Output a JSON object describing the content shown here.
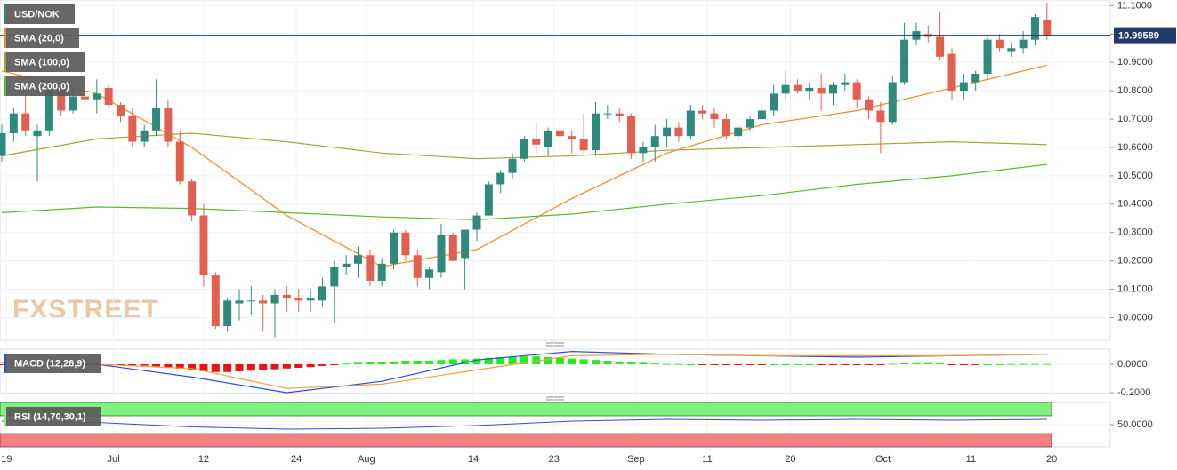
{
  "chart_data": [
    {
      "type": "candlestick",
      "title": "USD/NOK",
      "watermark": "FXSTREET",
      "up_color": "#2f8a7c",
      "down_color": "#e1604f",
      "open": [
        10.57,
        10.65,
        10.72,
        10.64,
        10.66,
        10.81,
        10.73,
        10.78,
        10.77,
        10.81,
        10.75,
        10.71,
        10.62,
        10.66,
        10.74,
        10.62,
        10.48,
        10.36,
        10.15,
        9.97,
        10.05,
        10.06,
        10.06,
        10.05,
        10.08,
        10.07,
        10.06,
        10.06,
        10.11,
        10.18,
        10.19,
        10.22,
        10.13,
        10.19,
        10.3,
        10.22,
        10.14,
        10.16,
        10.29,
        10.21,
        10.31,
        10.36,
        10.47,
        10.51,
        10.56,
        10.63,
        10.6,
        10.66,
        10.64,
        10.63,
        10.59,
        10.72,
        10.72,
        10.71,
        10.58,
        10.6,
        10.64,
        10.67,
        10.64,
        10.73,
        10.72,
        10.7,
        10.64,
        10.67,
        10.7,
        10.73,
        10.79,
        10.82,
        10.8,
        10.81,
        10.79,
        10.82,
        10.83,
        10.77,
        10.73,
        10.69,
        10.83,
        10.98,
        11.0,
        10.99,
        10.93,
        10.8,
        10.83,
        10.86,
        10.98,
        10.94,
        10.95,
        10.98,
        11.05
      ],
      "high": [
        10.68,
        10.74,
        10.8,
        10.68,
        10.84,
        10.83,
        10.82,
        10.8,
        10.84,
        10.82,
        10.76,
        10.74,
        10.68,
        10.84,
        10.77,
        10.66,
        10.49,
        10.4,
        10.16,
        10.07,
        10.1,
        10.11,
        10.08,
        10.1,
        10.11,
        10.1,
        10.1,
        10.14,
        10.2,
        10.22,
        10.25,
        10.24,
        10.21,
        10.31,
        10.31,
        10.24,
        10.18,
        10.33,
        10.3,
        10.31,
        10.37,
        10.48,
        10.52,
        10.58,
        10.64,
        10.69,
        10.67,
        10.68,
        10.66,
        10.72,
        10.76,
        10.75,
        10.74,
        10.72,
        10.62,
        10.68,
        10.7,
        10.69,
        10.75,
        10.75,
        10.74,
        10.72,
        10.68,
        10.71,
        10.75,
        10.82,
        10.87,
        10.84,
        10.83,
        10.86,
        10.83,
        10.86,
        10.84,
        10.78,
        10.76,
        10.85,
        11.04,
        11.04,
        11.03,
        11.08,
        10.95,
        10.86,
        10.87,
        10.99,
        11.0,
        10.97,
        11.01,
        11.07,
        11.11
      ],
      "low": [
        10.55,
        10.62,
        10.64,
        10.48,
        10.64,
        10.71,
        10.72,
        10.75,
        10.72,
        10.74,
        10.69,
        10.6,
        10.6,
        10.64,
        10.6,
        10.47,
        10.34,
        10.11,
        9.96,
        9.95,
        9.99,
        10.01,
        9.95,
        9.93,
        10.02,
        10.02,
        10.02,
        10.04,
        9.98,
        10.15,
        10.14,
        10.11,
        10.11,
        10.17,
        10.2,
        10.11,
        10.1,
        10.14,
        10.2,
        10.1,
        10.27,
        10.36,
        10.44,
        10.49,
        10.55,
        10.58,
        10.57,
        10.58,
        10.58,
        10.58,
        10.57,
        10.7,
        10.69,
        10.56,
        10.55,
        10.55,
        10.6,
        10.62,
        10.63,
        10.7,
        10.67,
        10.63,
        10.62,
        10.66,
        10.68,
        10.71,
        10.77,
        10.79,
        10.77,
        10.73,
        10.75,
        10.8,
        10.74,
        10.7,
        10.58,
        10.68,
        10.82,
        10.96,
        10.97,
        10.91,
        10.77,
        10.77,
        10.8,
        10.84,
        10.94,
        10.92,
        10.93,
        10.96,
        10.98
      ],
      "close": [
        10.65,
        10.72,
        10.66,
        10.66,
        10.81,
        10.73,
        10.78,
        10.77,
        10.79,
        10.75,
        10.71,
        10.62,
        10.66,
        10.74,
        10.62,
        10.48,
        10.36,
        10.15,
        9.97,
        10.06,
        10.06,
        10.06,
        10.05,
        10.08,
        10.07,
        10.06,
        10.07,
        10.11,
        10.18,
        10.19,
        10.22,
        10.13,
        10.19,
        10.3,
        10.22,
        10.14,
        10.17,
        10.29,
        10.2,
        10.31,
        10.36,
        10.47,
        10.51,
        10.56,
        10.63,
        10.61,
        10.66,
        10.64,
        10.63,
        10.59,
        10.72,
        10.72,
        10.71,
        10.58,
        10.6,
        10.64,
        10.67,
        10.64,
        10.73,
        10.72,
        10.7,
        10.64,
        10.67,
        10.7,
        10.73,
        10.79,
        10.82,
        10.8,
        10.81,
        10.79,
        10.82,
        10.83,
        10.77,
        10.73,
        10.69,
        10.83,
        10.98,
        11.01,
        10.99,
        10.92,
        10.8,
        10.83,
        10.86,
        10.98,
        10.95,
        10.95,
        10.98,
        11.06,
        10.996
      ],
      "overlays": [
        {
          "name": "SMA (20,0)",
          "color": "#f08a24",
          "x": [
            0,
            8,
            16,
            24,
            32,
            40,
            48,
            56,
            64,
            72,
            80,
            88
          ],
          "values": [
            10.87,
            10.79,
            10.6,
            10.36,
            10.18,
            10.24,
            10.42,
            10.58,
            10.68,
            10.73,
            10.81,
            10.89
          ]
        },
        {
          "name": "SMA (100,0)",
          "color": "#a9a132",
          "x": [
            0,
            8,
            16,
            24,
            32,
            40,
            48,
            56,
            64,
            72,
            80,
            88
          ],
          "values": [
            10.57,
            10.63,
            10.65,
            10.62,
            10.58,
            10.56,
            10.57,
            10.59,
            10.6,
            10.61,
            10.62,
            10.61
          ]
        },
        {
          "name": "SMA (200,0)",
          "color": "#5cb82e",
          "x": [
            0,
            8,
            16,
            24,
            32,
            40,
            48,
            56,
            64,
            72,
            80,
            88
          ],
          "values": [
            10.37,
            10.39,
            10.385,
            10.37,
            10.355,
            10.345,
            10.365,
            10.4,
            10.43,
            10.47,
            10.5,
            10.54
          ]
        }
      ],
      "last_price": 10.99589,
      "ylim": [
        9.92,
        11.12
      ],
      "yticks": [
        {
          "value": 11.1,
          "label": "11.1000"
        },
        {
          "value": 11.0,
          "label": "11.0000"
        },
        {
          "value": 10.9,
          "label": "10.9000"
        },
        {
          "value": 10.8,
          "label": "10.8000"
        },
        {
          "value": 10.7,
          "label": "10.7000"
        },
        {
          "value": 10.6,
          "label": "10.6000"
        },
        {
          "value": 10.5,
          "label": "10.5000"
        },
        {
          "value": 10.4,
          "label": "10.4000"
        },
        {
          "value": 10.3,
          "label": "10.3000"
        },
        {
          "value": 10.2,
          "label": "10.2000"
        },
        {
          "value": 10.1,
          "label": "10.1000"
        },
        {
          "value": 10.0,
          "label": "10.0000"
        }
      ],
      "xticks": [
        {
          "value": 0.4,
          "label": "19"
        },
        {
          "value": 9.4,
          "label": "Jul"
        },
        {
          "value": 17,
          "label": "12"
        },
        {
          "value": 24.8,
          "label": "24"
        },
        {
          "value": 30.7,
          "label": "Aug"
        },
        {
          "value": 39.7,
          "label": "14"
        },
        {
          "value": 46.5,
          "label": "23"
        },
        {
          "value": 53.4,
          "label": "Sep"
        },
        {
          "value": 59.4,
          "label": "11"
        },
        {
          "value": 66.4,
          "label": "20"
        },
        {
          "value": 74.2,
          "label": "Oct"
        },
        {
          "value": 81.6,
          "label": "11"
        },
        {
          "value": 88.4,
          "label": "20"
        }
      ]
    },
    {
      "type": "macd",
      "title": "MACD (12,26,9)",
      "histogram": [
        -0.002,
        -0.002,
        -0.003,
        -0.003,
        -0.002,
        -0.002,
        -0.003,
        -0.003,
        -0.004,
        -0.005,
        -0.006,
        -0.008,
        -0.01,
        -0.015,
        -0.02,
        -0.03,
        -0.04,
        -0.05,
        -0.055,
        -0.055,
        -0.05,
        -0.045,
        -0.04,
        -0.035,
        -0.03,
        -0.025,
        -0.02,
        -0.012,
        -0.005,
        0.005,
        0.01,
        0.015,
        0.015,
        0.02,
        0.025,
        0.025,
        0.025,
        0.03,
        0.035,
        0.035,
        0.04,
        0.045,
        0.05,
        0.055,
        0.055,
        0.055,
        0.05,
        0.045,
        0.04,
        0.035,
        0.03,
        0.025,
        0.02,
        0.015,
        0.01,
        0.005,
        0.002,
        0.002,
        0.0,
        -0.003,
        -0.005,
        -0.005,
        -0.005,
        -0.003,
        -0.002,
        0.0,
        0.001,
        0.001,
        0.0,
        -0.002,
        -0.003,
        -0.004,
        -0.005,
        -0.005,
        -0.004,
        0.003,
        0.006,
        0.008,
        0.008,
        0.006,
        -0.003,
        -0.004,
        -0.003,
        0.0,
        0.001,
        0.002,
        0.002,
        0.002,
        0.002
      ],
      "up_color": "#22ee22",
      "down_color": "#ee1111",
      "lines": [
        {
          "color": "#2f4fd8",
          "x": [
            0,
            8,
            16,
            24,
            32,
            40,
            48,
            56,
            64,
            72,
            80,
            88
          ],
          "values": [
            0.01,
            0.0,
            -0.09,
            -0.2,
            -0.12,
            0.03,
            0.09,
            0.07,
            0.06,
            0.05,
            0.06,
            0.07
          ]
        },
        {
          "color": "#f0a040",
          "x": [
            0,
            8,
            16,
            24,
            32,
            40,
            48,
            56,
            64,
            72,
            80,
            88
          ],
          "values": [
            0.01,
            0.0,
            -0.03,
            -0.17,
            -0.14,
            -0.04,
            0.06,
            0.07,
            0.06,
            0.06,
            0.06,
            0.07
          ]
        }
      ],
      "ylim": [
        -0.206,
        0.106
      ],
      "yticks": [
        {
          "value": 0,
          "label": "0.0000"
        },
        {
          "value": -0.2,
          "label": "-0.2000"
        }
      ]
    },
    {
      "type": "rsi",
      "title": "RSI (14,70,30,1)",
      "bands": [
        {
          "from": 70,
          "to": 100,
          "color": "#80f080"
        },
        {
          "from": 0,
          "to": 30,
          "color": "#f58080"
        }
      ],
      "line": {
        "color": "#2f4fd8",
        "x": [
          0,
          8,
          16,
          24,
          32,
          40,
          48,
          56,
          64,
          72,
          80,
          88
        ],
        "values": [
          58,
          55,
          45,
          40,
          42,
          48,
          58,
          62,
          60,
          62,
          60,
          62
        ]
      },
      "ylim": [
        0,
        100
      ],
      "yticks": [
        {
          "value": 50,
          "label": "50.0000"
        }
      ]
    }
  ]
}
